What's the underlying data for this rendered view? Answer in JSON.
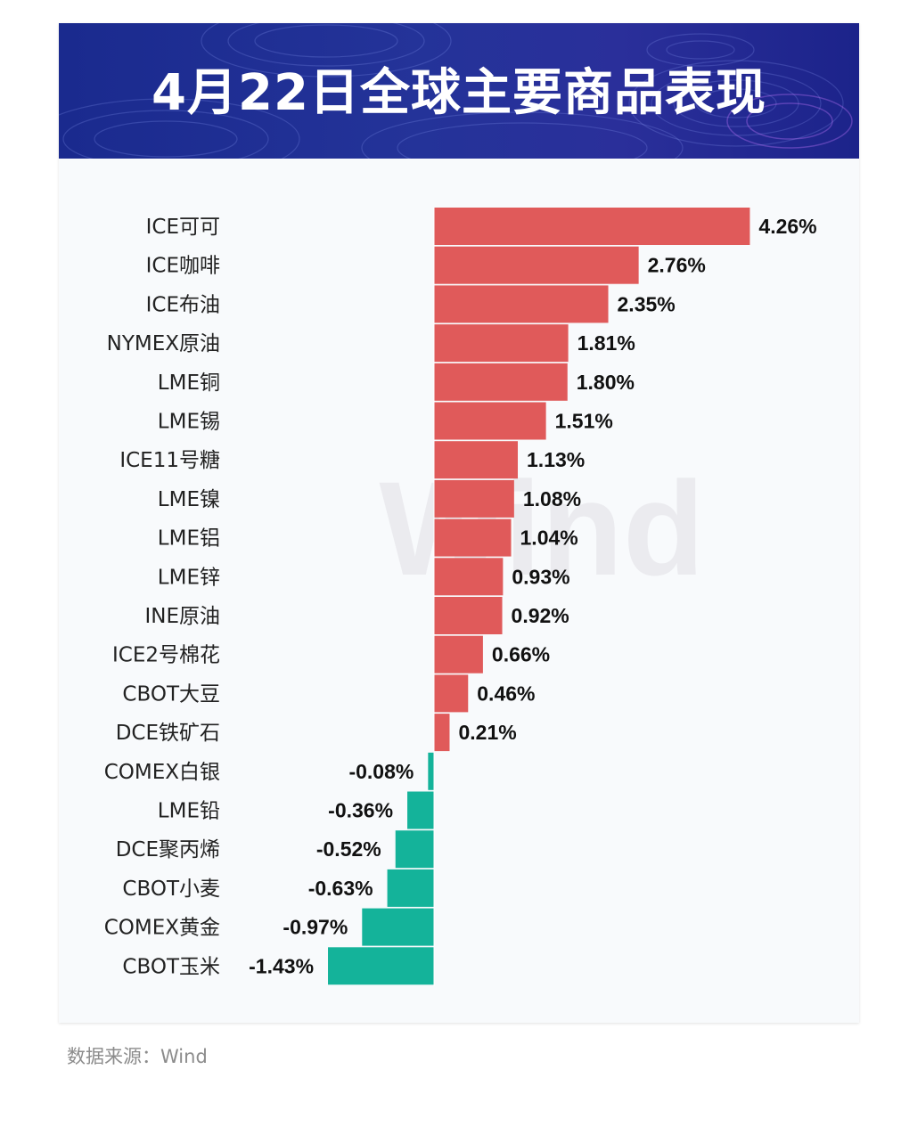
{
  "header": {
    "title": "4月22日全球主要商品表现"
  },
  "watermark": "Wind",
  "source": "数据来源：Wind",
  "colors": {
    "positive": "#e05a5a",
    "negative": "#14b39a",
    "banner": "#243399"
  },
  "chart_data": {
    "type": "bar",
    "orientation": "horizontal",
    "title": "4月22日全球主要商品表现",
    "unit": "%",
    "categories": [
      "ICE可可",
      "ICE咖啡",
      "ICE布油",
      "NYMEX原油",
      "LME铜",
      "LME锡",
      "ICE11号糖",
      "LME镍",
      "LME铝",
      "LME锌",
      "INE原油",
      "ICE2号棉花",
      "CBOT大豆",
      "DCE铁矿石",
      "COMEX白银",
      "LME铅",
      "DCE聚丙烯",
      "CBOT小麦",
      "COMEX黄金",
      "CBOT玉米"
    ],
    "values": [
      4.26,
      2.76,
      2.35,
      1.81,
      1.8,
      1.51,
      1.13,
      1.08,
      1.04,
      0.93,
      0.92,
      0.66,
      0.46,
      0.21,
      -0.08,
      -0.36,
      -0.52,
      -0.63,
      -0.97,
      -1.43
    ],
    "labels": [
      "4.26%",
      "2.76%",
      "2.35%",
      "1.81%",
      "1.80%",
      "1.51%",
      "1.13%",
      "1.08%",
      "1.04%",
      "0.93%",
      "0.92%",
      "0.66%",
      "0.46%",
      "0.21%",
      "-0.08%",
      "-0.36%",
      "-0.52%",
      "-0.63%",
      "-0.97%",
      "-1.43%"
    ]
  }
}
